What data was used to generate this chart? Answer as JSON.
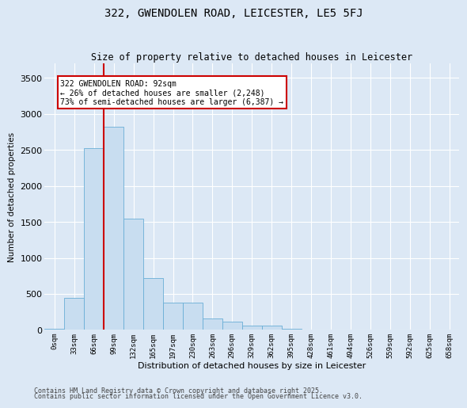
{
  "title": "322, GWENDOLEN ROAD, LEICESTER, LE5 5FJ",
  "subtitle": "Size of property relative to detached houses in Leicester",
  "xlabel": "Distribution of detached houses by size in Leicester",
  "ylabel": "Number of detached properties",
  "bar_color": "#c8ddf0",
  "bar_edge_color": "#6aaed6",
  "background_color": "#dce8f5",
  "fig_background": "#dce8f5",
  "grid_color": "#ffffff",
  "vline_color": "#cc0000",
  "vline_x": 2.5,
  "annotation_text": "322 GWENDOLEN ROAD: 92sqm\n← 26% of detached houses are smaller (2,248)\n73% of semi-detached houses are larger (6,387) →",
  "annotation_box_facecolor": "#ffffff",
  "annotation_box_edgecolor": "#cc0000",
  "bins": [
    "0sqm",
    "33sqm",
    "66sqm",
    "99sqm",
    "132sqm",
    "165sqm",
    "197sqm",
    "230sqm",
    "263sqm",
    "296sqm",
    "329sqm",
    "362sqm",
    "395sqm",
    "428sqm",
    "461sqm",
    "494sqm",
    "526sqm",
    "559sqm",
    "592sqm",
    "625sqm",
    "658sqm"
  ],
  "values": [
    15,
    450,
    2520,
    2820,
    1540,
    720,
    380,
    380,
    160,
    110,
    60,
    55,
    15,
    10,
    5,
    3,
    2,
    1,
    1,
    1,
    0
  ],
  "ylim": [
    0,
    3700
  ],
  "yticks": [
    0,
    500,
    1000,
    1500,
    2000,
    2500,
    3000,
    3500
  ],
  "footer1": "Contains HM Land Registry data © Crown copyright and database right 2025.",
  "footer2": "Contains public sector information licensed under the Open Government Licence v3.0."
}
